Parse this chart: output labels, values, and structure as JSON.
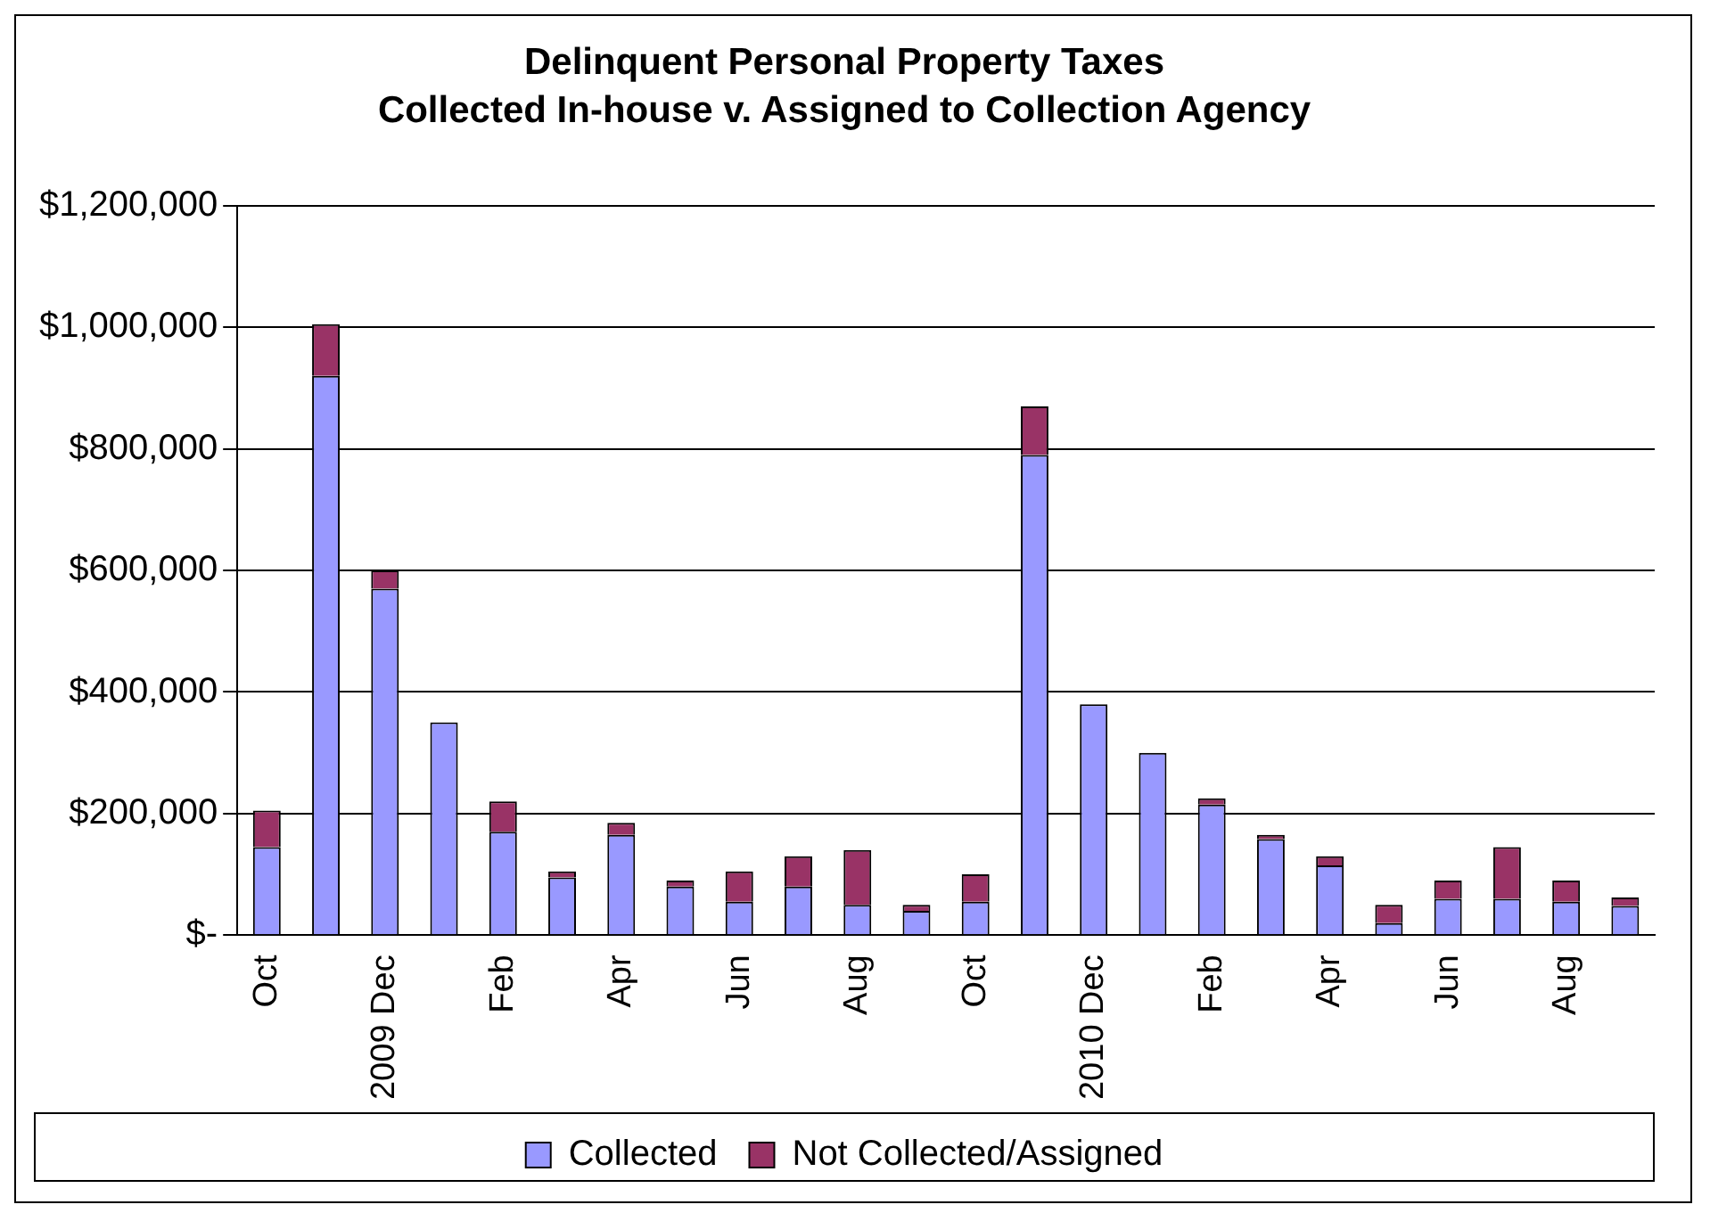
{
  "chart_data": {
    "type": "bar",
    "title": "Delinquent Personal Property Taxes",
    "subtitle": "Collected In-house v. Assigned to Collection Agency",
    "categories": [
      "Oct",
      null,
      "2009 Dec",
      null,
      "Feb",
      null,
      "Apr",
      null,
      "Jun",
      null,
      "Aug",
      null,
      "Oct",
      null,
      "2010 Dec",
      null,
      "Feb",
      null,
      "Apr",
      null,
      "Jun",
      null,
      "Aug",
      null
    ],
    "series": [
      {
        "name": "Collected",
        "color": "#9999ff",
        "values": [
          145000,
          920000,
          570000,
          350000,
          170000,
          95000,
          165000,
          80000,
          55000,
          80000,
          50000,
          40000,
          55000,
          790000,
          380000,
          300000,
          215000,
          158000,
          115000,
          20000,
          60000,
          60000,
          55000,
          48000
        ]
      },
      {
        "name": "Not Collected/Assigned",
        "color": "#993366",
        "values": [
          60000,
          85000,
          30000,
          0,
          50000,
          10000,
          20000,
          10000,
          50000,
          50000,
          90000,
          10000,
          45000,
          80000,
          0,
          0,
          10000,
          7000,
          15000,
          30000,
          30000,
          85000,
          35000,
          14000
        ]
      }
    ],
    "stacked": true,
    "ylim": [
      0,
      1200000
    ],
    "yticks": [
      {
        "value": 0,
        "label": "$-"
      },
      {
        "value": 200000,
        "label": "$200,000"
      },
      {
        "value": 400000,
        "label": "$400,000"
      },
      {
        "value": 600000,
        "label": "$600,000"
      },
      {
        "value": 800000,
        "label": "$800,000"
      },
      {
        "value": 1000000,
        "label": "$1,000,000"
      },
      {
        "value": 1200000,
        "label": "$1,200,000"
      }
    ],
    "grid": "y",
    "legend": "bottom"
  }
}
